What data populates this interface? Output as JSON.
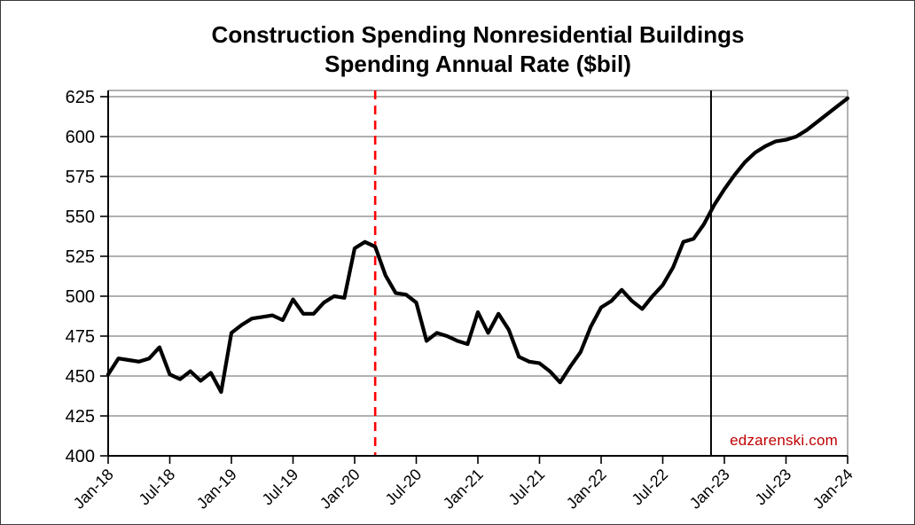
{
  "chart": {
    "title_line1": "Construction Spending Nonresidential Buildings",
    "title_line2": "Spending Annual Rate ($bil)",
    "watermark": "edzarenski.com"
  },
  "chart_data": {
    "type": "line",
    "title": "Construction Spending Nonresidential Buildings Spending Annual Rate ($bil)",
    "ylabel": "",
    "xlabel": "",
    "ylim": [
      400,
      625
    ],
    "y_ticks": [
      400,
      425,
      450,
      475,
      500,
      525,
      550,
      575,
      600,
      625
    ],
    "x_tick_labels": [
      "Jan-18",
      "Jul-18",
      "Jan-19",
      "Jul-19",
      "Jan-20",
      "Jul-20",
      "Jan-21",
      "Jul-21",
      "Jan-22",
      "Jul-22",
      "Jan-23",
      "Jul-23",
      "Jan-24"
    ],
    "x_tick_months": [
      0,
      6,
      12,
      18,
      24,
      30,
      36,
      42,
      48,
      54,
      60,
      66,
      72
    ],
    "months_total": 72,
    "grid": "horizontal",
    "grid_color": "#808080",
    "frame_color": "#808080",
    "axis_color": "#000000",
    "series": [
      {
        "name": "Nonresidential buildings spending, annual rate ($bil)",
        "color": "#000000",
        "start_month": "Jan-18",
        "end_month": "Jan-24",
        "values": [
          451,
          461,
          460,
          459,
          461,
          468,
          451,
          448,
          453,
          447,
          452,
          440,
          477,
          482,
          486,
          487,
          488,
          485,
          498,
          489,
          489,
          496,
          500,
          499,
          530,
          534,
          531,
          513,
          502,
          501,
          496,
          472,
          477,
          475,
          472,
          470,
          490,
          477,
          489,
          479,
          462,
          459,
          458,
          453,
          446,
          456,
          465,
          481,
          493,
          497,
          504,
          497,
          492,
          500,
          507,
          518,
          534,
          536,
          545,
          557,
          567,
          576,
          584,
          590,
          594,
          597,
          598,
          600,
          604,
          609,
          614,
          619,
          624
        ]
      }
    ],
    "vlines": [
      {
        "month_index": 26,
        "near_label": "Mar-20",
        "color": "#FF0000",
        "style": "dashed"
      },
      {
        "month_index": 58.7,
        "near_label": "Dec-22",
        "color": "#000000",
        "style": "solid"
      }
    ],
    "annotations": [
      {
        "text": "edzarenski.com",
        "color": "#C00000",
        "position": "bottom-right"
      }
    ],
    "legend": "none"
  }
}
